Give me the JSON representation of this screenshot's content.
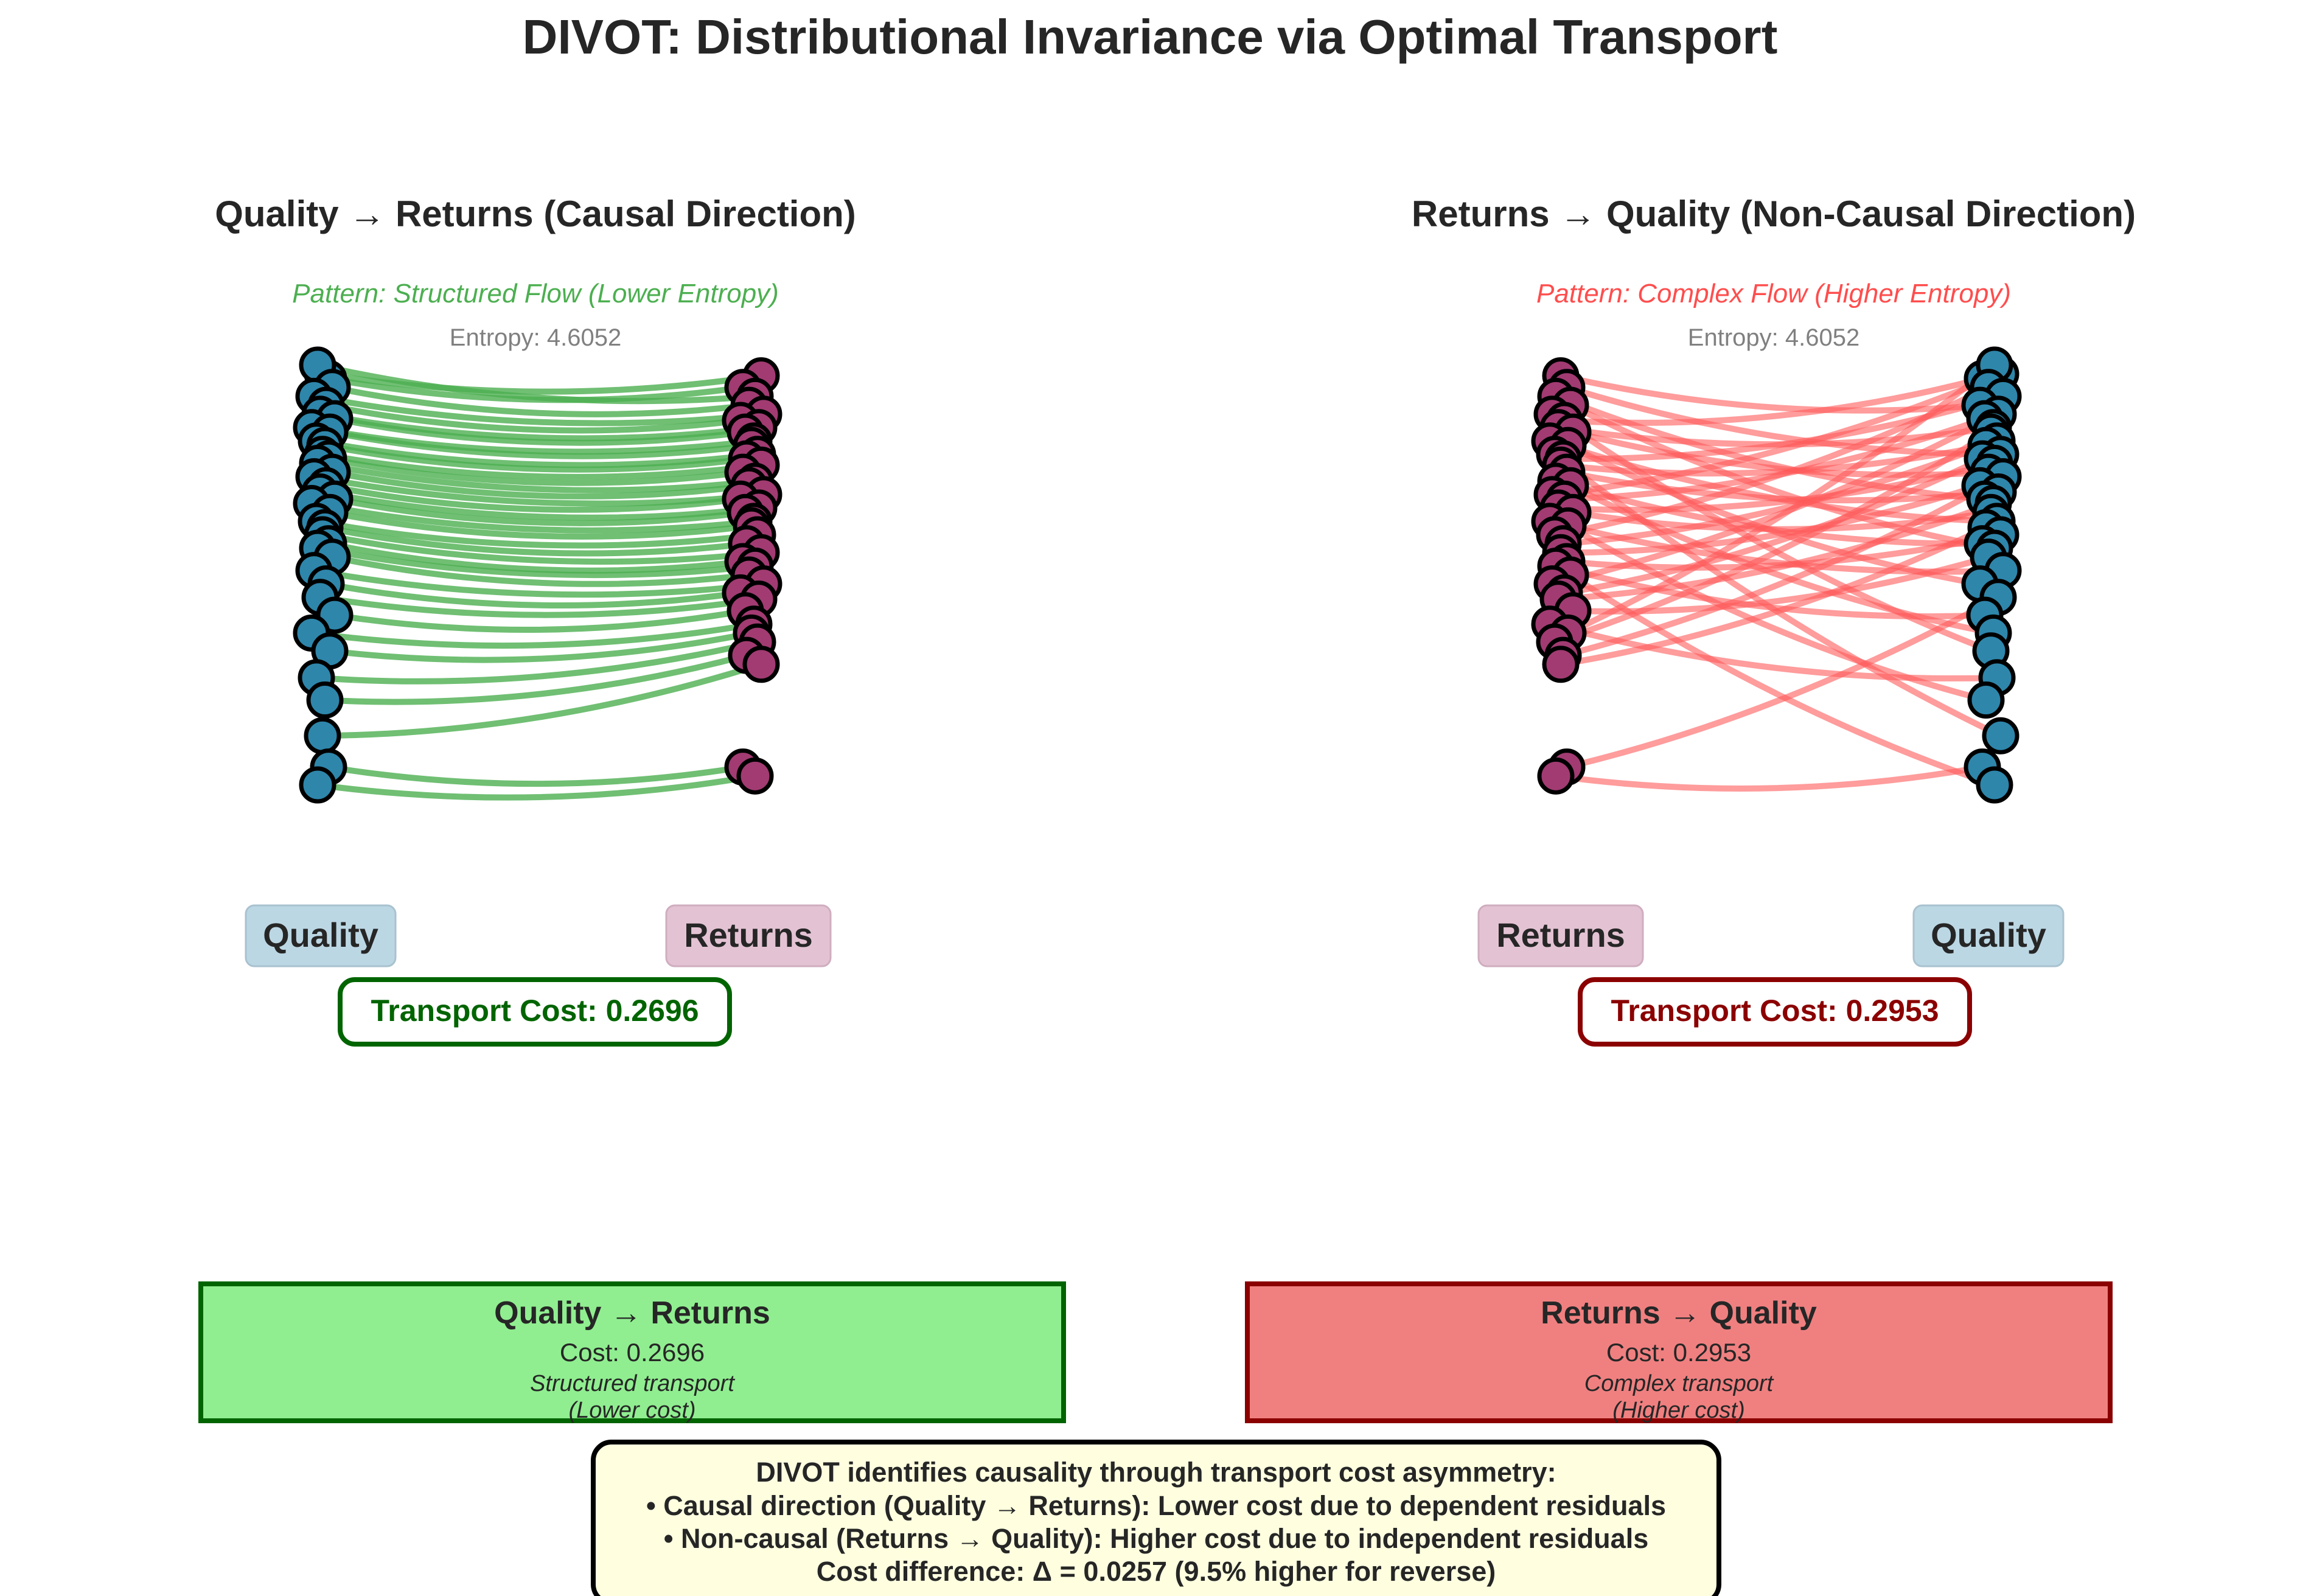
{
  "title": "DIVOT: Distributional Invariance via Optimal Transport",
  "colors": {
    "quality": "#2e86ab",
    "returns": "#a23b72",
    "causal_flow": "#4caf50",
    "noncausal_flow": "#ff5a5a",
    "causal_text": "#4caf50",
    "noncausal_text": "#ff4d4d",
    "causal_dark": "#006400",
    "noncausal_dark": "#8b0000",
    "quality_label_bg": "#bcd7e4",
    "returns_label_bg": "#e3c3d3",
    "causal_box_bg": "#90ee90",
    "noncausal_box_bg": "#f08080",
    "conclusion_bg": "#ffffe0"
  },
  "panels": {
    "causal": {
      "title": "Quality → Returns (Causal Direction)",
      "pattern": "Pattern: Structured Flow (Lower Entropy)",
      "entropy": "Entropy: 4.6052",
      "left_label": "Quality",
      "right_label": "Returns",
      "transport_cost": "Transport Cost: 0.2696"
    },
    "noncausal": {
      "title": "Returns → Quality (Non-Causal Direction)",
      "pattern": "Pattern: Complex Flow (Higher Entropy)",
      "entropy": "Entropy: 4.6052",
      "left_label": "Returns",
      "right_label": "Quality",
      "transport_cost": "Transport Cost: 0.2953"
    }
  },
  "summary": {
    "causal": {
      "title": "Quality → Returns",
      "cost": "Cost: 0.2696",
      "desc": "Structured transport",
      "note": "(Lower cost)"
    },
    "noncausal": {
      "title": "Returns → Quality",
      "cost": "Cost: 0.2953",
      "desc": "Complex transport",
      "note": "(Higher cost)"
    }
  },
  "conclusion": {
    "line1": "DIVOT identifies causality through transport cost asymmetry:",
    "line2": "• Causal direction (Quality → Returns): Lower cost due to dependent residuals",
    "line3": "• Non-causal (Returns → Quality): Higher cost due to independent residuals",
    "line4": "Cost difference: Δ = 0.0257 (9.5% higher for reverse)"
  },
  "distributions": {
    "quality": [
      0.98,
      0.975,
      0.99,
      0.965,
      0.955,
      0.945,
      0.935,
      0.93,
      0.92,
      0.915,
      0.905,
      0.9,
      0.89,
      0.885,
      0.88,
      0.87,
      0.865,
      0.855,
      0.848,
      0.84,
      0.835,
      0.825,
      0.815,
      0.808,
      0.8,
      0.79,
      0.785,
      0.775,
      0.76,
      0.745,
      0.73,
      0.71,
      0.69,
      0.67,
      0.64,
      0.615,
      0.575,
      0.54,
      0.52
    ],
    "returns": [
      0.978,
      0.965,
      0.955,
      0.945,
      0.935,
      0.928,
      0.92,
      0.915,
      0.905,
      0.9,
      0.89,
      0.885,
      0.878,
      0.87,
      0.86,
      0.855,
      0.845,
      0.84,
      0.83,
      0.825,
      0.815,
      0.81,
      0.8,
      0.79,
      0.78,
      0.77,
      0.765,
      0.755,
      0.745,
      0.735,
      0.728,
      0.715,
      0.7,
      0.69,
      0.68,
      0.665,
      0.655,
      0.54,
      0.53
    ]
  }
}
